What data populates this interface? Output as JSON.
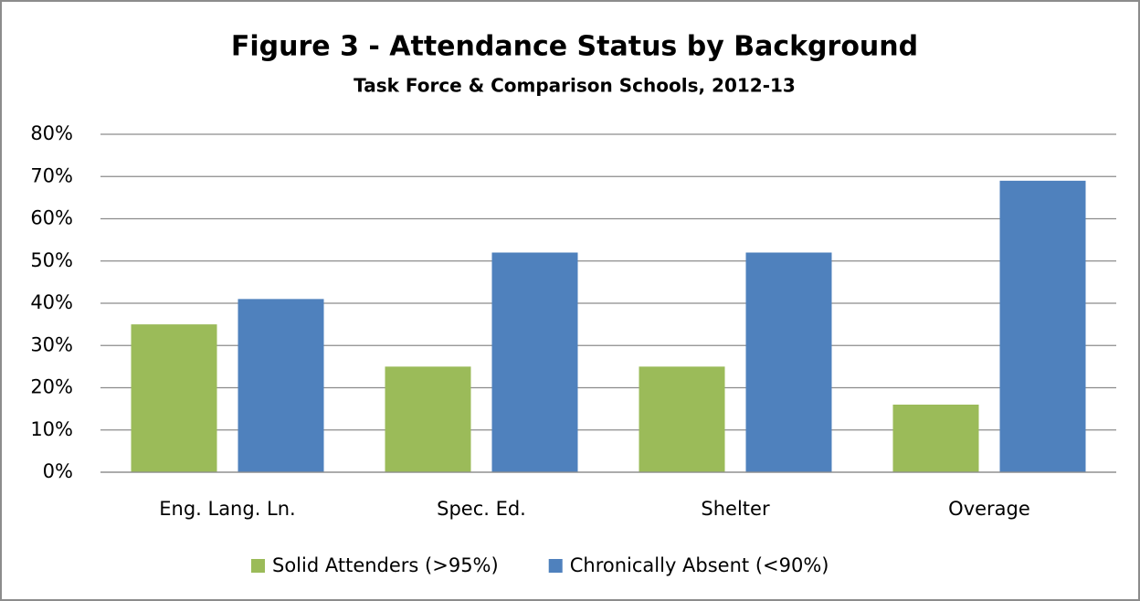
{
  "chart_data": {
    "type": "bar",
    "title": "Figure 3 - Attendance Status by Background",
    "subtitle": "Task Force & Comparison Schools, 2012-13",
    "categories": [
      "Eng. Lang. Ln.",
      "Spec. Ed.",
      "Shelter",
      "Overage"
    ],
    "series": [
      {
        "name": "Solid Attenders (>95%)",
        "color": "#9bbb59",
        "values": [
          35,
          25,
          25,
          16
        ]
      },
      {
        "name": "Chronically Absent (<90%)",
        "color": "#4f81bd",
        "values": [
          41,
          52,
          52,
          69
        ]
      }
    ],
    "ylim": [
      0,
      80
    ],
    "yticks": [
      {
        "value": 0,
        "label": "0%"
      },
      {
        "value": 10,
        "label": "10%"
      },
      {
        "value": 20,
        "label": "20%"
      },
      {
        "value": 30,
        "label": "30%"
      },
      {
        "value": 40,
        "label": "40%"
      },
      {
        "value": 50,
        "label": "50%"
      },
      {
        "value": 60,
        "label": "60%"
      },
      {
        "value": 70,
        "label": "70%"
      },
      {
        "value": 80,
        "label": "80%"
      }
    ],
    "grid": true,
    "legend": "bottom"
  }
}
